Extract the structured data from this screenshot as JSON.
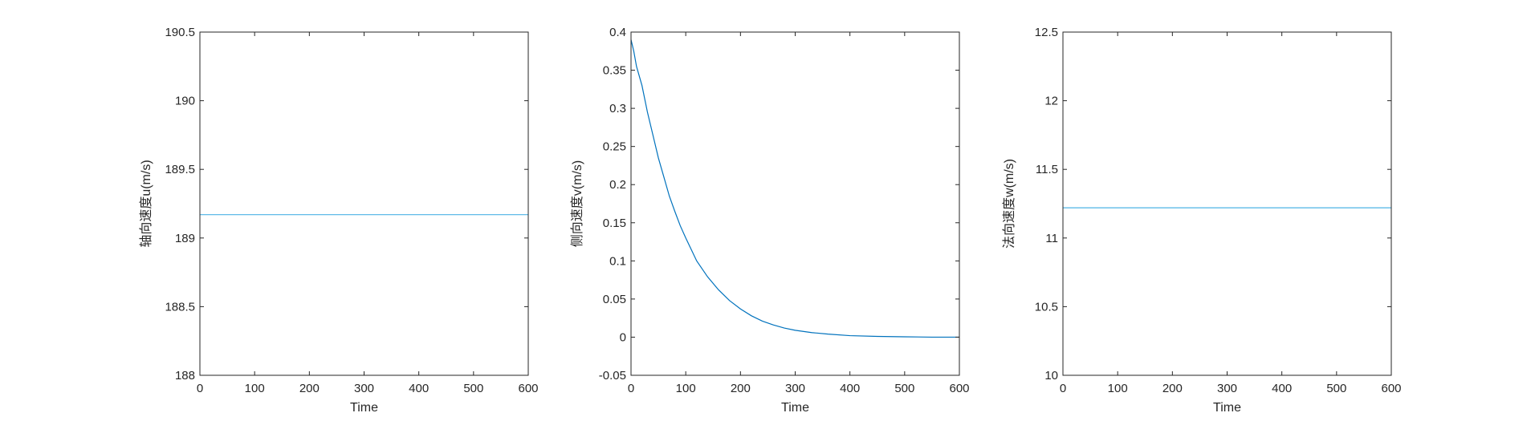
{
  "chart_data": [
    {
      "type": "line",
      "xlabel": "Time",
      "ylabel": "轴向速度u(m/s)",
      "xlim": [
        0,
        600
      ],
      "ylim": [
        188,
        190.5
      ],
      "xticks": [
        0,
        100,
        200,
        300,
        400,
        500,
        600
      ],
      "yticks": [
        188,
        188.5,
        189,
        189.5,
        190,
        190.5
      ],
      "ytick_labels": [
        "188",
        "188.5",
        "189",
        "189.5",
        "190",
        "190.5"
      ],
      "grid": false,
      "color": "#4db3e6",
      "series": [
        {
          "x": [
            0,
            600
          ],
          "y": [
            189.17,
            189.17
          ]
        }
      ]
    },
    {
      "type": "line",
      "xlabel": "Time",
      "ylabel": "侧向速度v(m/s)",
      "xlim": [
        0,
        600
      ],
      "ylim": [
        -0.05,
        0.4
      ],
      "xticks": [
        0,
        100,
        200,
        300,
        400,
        500,
        600
      ],
      "yticks": [
        -0.05,
        0,
        0.05,
        0.1,
        0.15,
        0.2,
        0.25,
        0.3,
        0.35,
        0.4
      ],
      "ytick_labels": [
        "-0.05",
        "0",
        "0.05",
        "0.1",
        "0.15",
        "0.2",
        "0.25",
        "0.3",
        "0.35",
        "0.4"
      ],
      "grid": false,
      "color": "#0072bd",
      "series": [
        {
          "x": [
            0,
            5,
            10,
            20,
            30,
            40,
            50,
            60,
            70,
            80,
            90,
            100,
            120,
            140,
            160,
            180,
            200,
            220,
            240,
            260,
            280,
            300,
            330,
            360,
            400,
            450,
            500,
            550,
            600
          ],
          "y": [
            0.39,
            0.375,
            0.355,
            0.33,
            0.295,
            0.265,
            0.235,
            0.21,
            0.185,
            0.165,
            0.146,
            0.13,
            0.1,
            0.079,
            0.062,
            0.048,
            0.037,
            0.028,
            0.021,
            0.016,
            0.012,
            0.009,
            0.006,
            0.004,
            0.002,
            0.001,
            0.0005,
            0.0,
            0.0
          ]
        }
      ]
    },
    {
      "type": "line",
      "xlabel": "Time",
      "ylabel": "法向速度w(m/s)",
      "xlim": [
        0,
        600
      ],
      "ylim": [
        10,
        12.5
      ],
      "xticks": [
        0,
        100,
        200,
        300,
        400,
        500,
        600
      ],
      "yticks": [
        10,
        10.5,
        11,
        11.5,
        12,
        12.5
      ],
      "ytick_labels": [
        "10",
        "10.5",
        "11",
        "11.5",
        "12",
        "12.5"
      ],
      "grid": false,
      "color": "#4db3e6",
      "series": [
        {
          "x": [
            0,
            600
          ],
          "y": [
            11.22,
            11.22
          ]
        }
      ]
    }
  ]
}
